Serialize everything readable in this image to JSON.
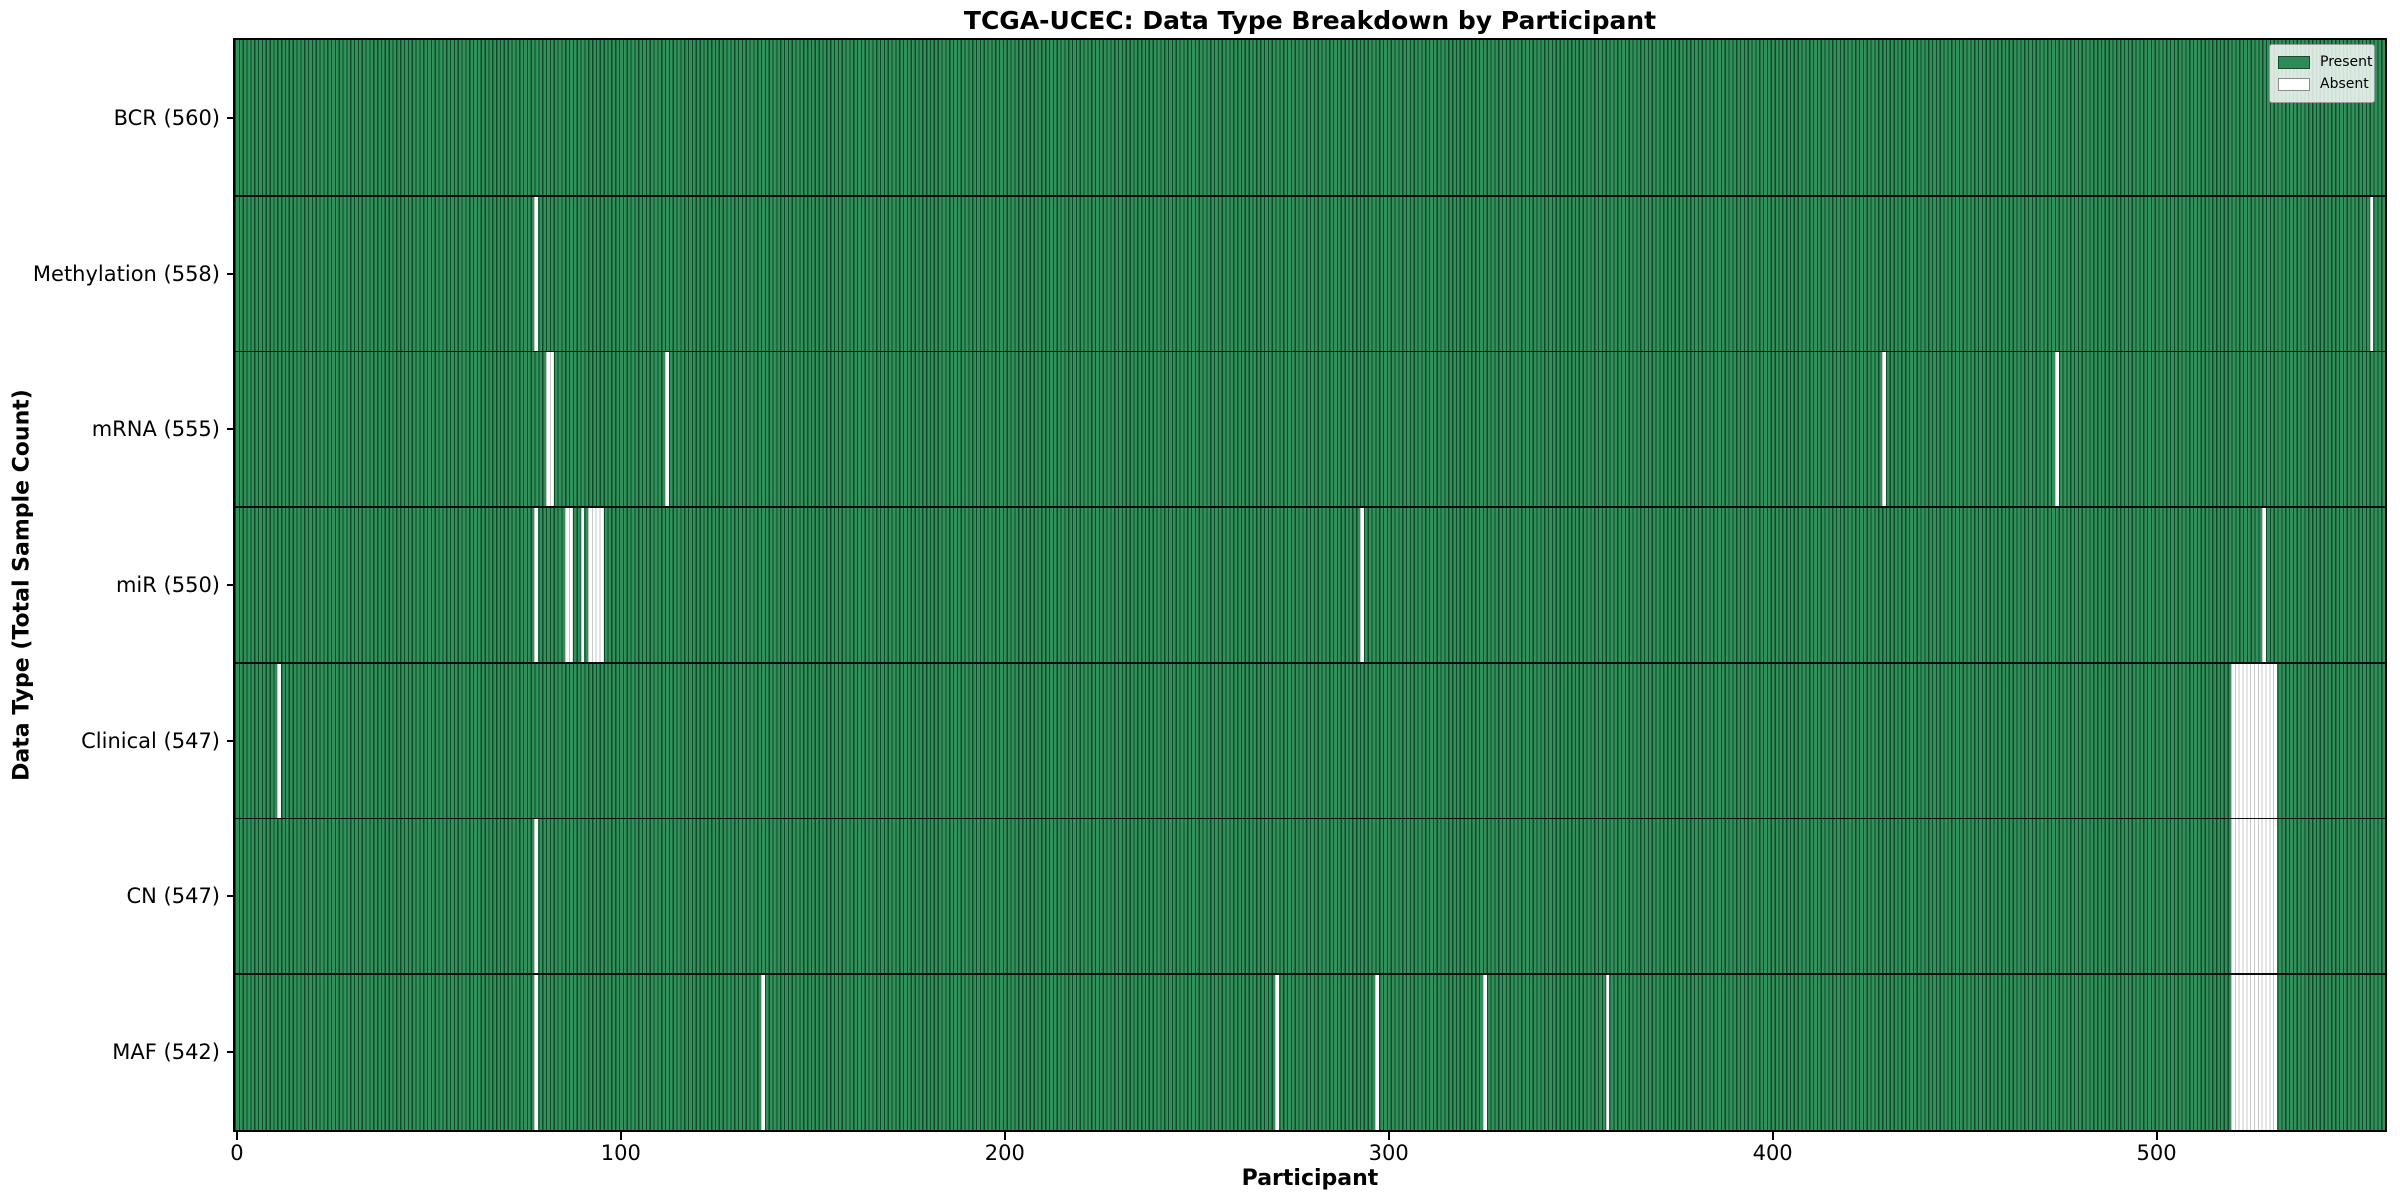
{
  "figure": {
    "title": "TCGA-UCEC: Data Type Breakdown by Participant",
    "xlabel": "Participant",
    "ylabel": "Data Type (Total Sample Count)"
  },
  "legend": {
    "items": [
      {
        "label": "Present",
        "color": "#2e8b57"
      },
      {
        "label": "Absent",
        "color": "#ffffff"
      }
    ]
  },
  "chart_data": {
    "type": "heatmap",
    "title": "TCGA-UCEC: Data Type Breakdown by Participant",
    "xlabel": "Participant",
    "ylabel": "Data Type (Total Sample Count)",
    "legend_position": "upper right",
    "grid": false,
    "n_participants": 560,
    "xlim": [
      -0.5,
      559.5
    ],
    "x_ticks": [
      0,
      100,
      200,
      300,
      400,
      500
    ],
    "present_color": "#2e8b57",
    "absent_color": "#ffffff",
    "rows": [
      {
        "label": "BCR (560)",
        "data_type": "BCR",
        "total": 560,
        "absent_participants": []
      },
      {
        "label": "Methylation (558)",
        "data_type": "Methylation",
        "total": 558,
        "absent_participants": [
          78,
          556
        ]
      },
      {
        "label": "mRNA (555)",
        "data_type": "mRNA",
        "total": 555,
        "absent_participants": [
          81,
          82,
          112,
          429,
          474
        ]
      },
      {
        "label": "miR (550)",
        "data_type": "miR",
        "total": 550,
        "absent_participants": [
          78,
          86,
          87,
          90,
          92,
          93,
          94,
          95,
          293,
          528
        ]
      },
      {
        "label": "Clinical (547)",
        "data_type": "Clinical",
        "total": 547,
        "absent_participants": [
          11,
          520,
          521,
          522,
          523,
          524,
          525,
          526,
          527,
          528,
          529,
          530,
          531
        ]
      },
      {
        "label": "CN (547)",
        "data_type": "CN",
        "total": 547,
        "absent_participants": [
          78,
          520,
          521,
          522,
          523,
          524,
          525,
          526,
          527,
          528,
          529,
          530,
          531
        ]
      },
      {
        "label": "MAF (542)",
        "data_type": "MAF",
        "total": 542,
        "absent_participants": [
          78,
          137,
          271,
          297,
          325,
          357,
          520,
          521,
          522,
          523,
          524,
          525,
          526,
          527,
          528,
          529,
          530,
          531
        ]
      }
    ]
  }
}
